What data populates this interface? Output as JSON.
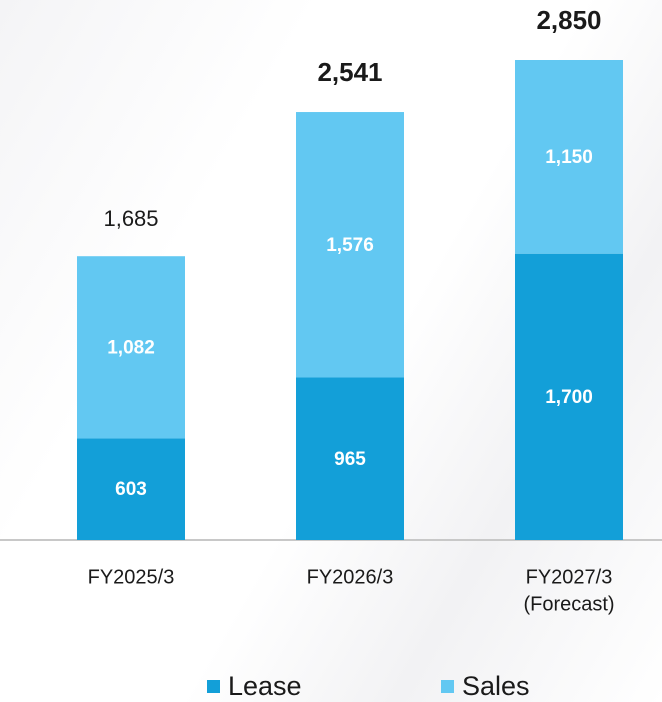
{
  "chart_data": {
    "type": "stacked-bar",
    "categories": [
      [
        "FY2025/3"
      ],
      [
        "FY2026/3"
      ],
      [
        "FY2027/3",
        "(Forecast)"
      ]
    ],
    "series": [
      {
        "name": "Lease",
        "color": "#139fd8",
        "values": [
          603,
          965,
          1700
        ],
        "value_labels": [
          "603",
          "965",
          "1,700"
        ]
      },
      {
        "name": "Sales",
        "color": "#62c8f2",
        "values": [
          1082,
          1576,
          1150
        ],
        "value_labels": [
          "1,082",
          "1,576",
          "1,150"
        ]
      }
    ],
    "totals": [
      1685,
      2541,
      2850
    ],
    "total_labels": [
      "1,685",
      "2,541",
      "2,850"
    ],
    "total_emphasis": [
      false,
      true,
      true
    ],
    "ylim": [
      0,
      2850
    ],
    "legend": "bottom"
  }
}
